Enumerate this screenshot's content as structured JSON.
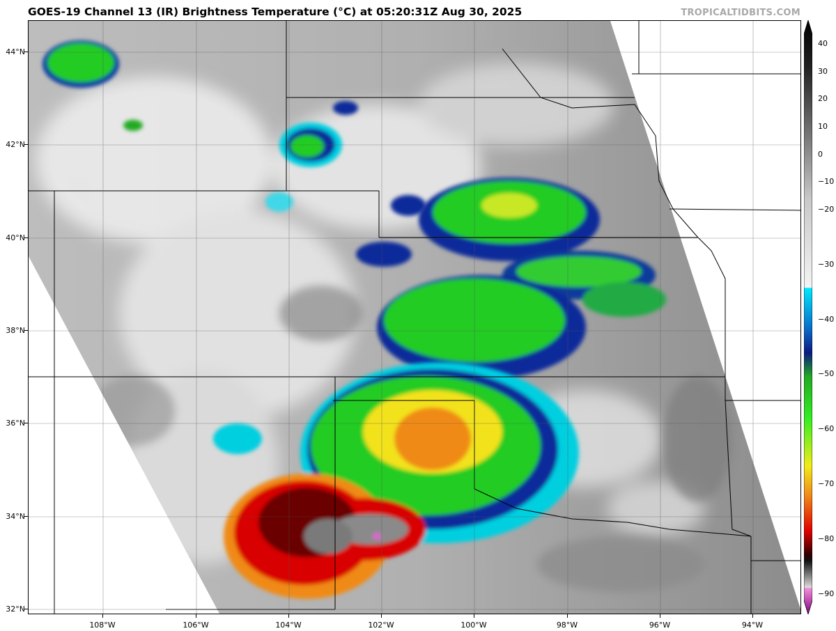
{
  "title": "GOES-19 Channel 13 (IR) Brightness Temperature (°C) at 05:20:31Z Aug 30, 2025",
  "credit": "TROPICALTIDBITS.COM",
  "map": {
    "lat_labels": [
      "44°N",
      "42°N",
      "40°N",
      "38°N",
      "36°N",
      "34°N",
      "32°N"
    ],
    "lon_labels": [
      "108°W",
      "106°W",
      "104°W",
      "102°W",
      "100°W",
      "98°W",
      "96°W",
      "94°W"
    ]
  },
  "colorbar": {
    "labels": [
      "40",
      "30",
      "20",
      "10",
      "0",
      "−10",
      "−20",
      "−30",
      "−40",
      "−50",
      "−60",
      "−70",
      "−80",
      "−90"
    ],
    "min": -93,
    "max": 40
  },
  "colors": {
    "cloud_light": "#eeeeee",
    "cloud_mid": "#9a9a9a",
    "cyan": "#00d8ee",
    "blue": "#0a2a9a",
    "green": "#22cc22",
    "yellow": "#f2e21a",
    "orange": "#f08a18",
    "red": "#d80000",
    "dark_red": "#6a0000",
    "pink": "#e060d0"
  }
}
